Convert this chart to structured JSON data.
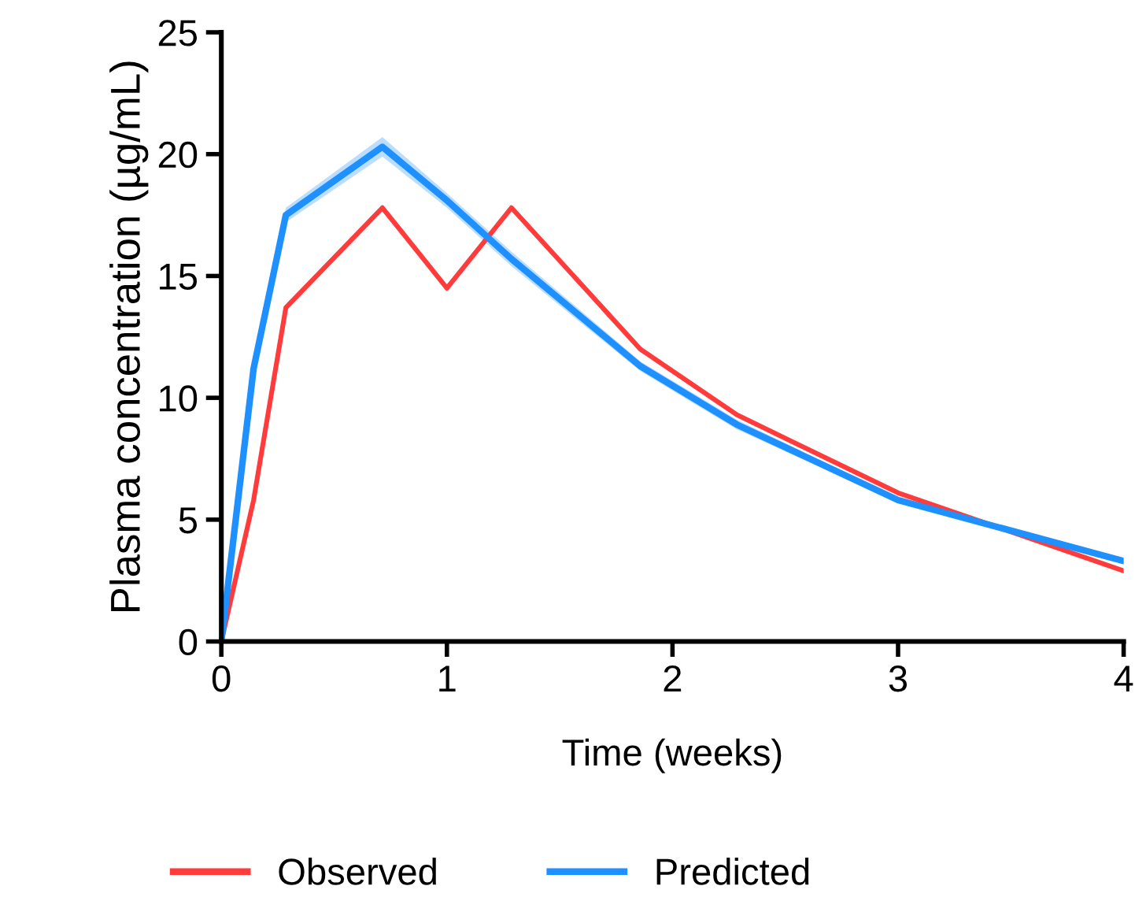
{
  "chart_data": {
    "type": "line",
    "xlabel": "Time (weeks)",
    "ylabel": "Plasma concentration (µg/mL)",
    "x": [
      0,
      0.143,
      0.286,
      0.714,
      1,
      1.286,
      1.857,
      2.286,
      3,
      4
    ],
    "series": [
      {
        "name": "Observed",
        "color": "#ff3b3b",
        "values": [
          0,
          5.8,
          13.7,
          17.8,
          14.5,
          17.8,
          12.0,
          9.3,
          6.1,
          2.9
        ]
      },
      {
        "name": "Predicted",
        "color": "#1e90ff",
        "values": [
          0,
          11.2,
          17.5,
          20.3,
          18.1,
          15.7,
          11.3,
          8.9,
          5.8,
          3.3
        ],
        "lower": [
          0,
          10.9,
          17.2,
          19.9,
          17.8,
          15.4,
          11.1,
          8.7,
          5.7,
          3.2
        ],
        "upper": [
          0,
          11.5,
          17.8,
          20.7,
          18.4,
          16.0,
          11.5,
          9.1,
          5.9,
          3.4
        ]
      }
    ],
    "xlim": [
      0,
      4
    ],
    "xticks": [
      0,
      1,
      2,
      3,
      4
    ],
    "ylim": [
      0,
      25
    ],
    "yticks": [
      0,
      5,
      10,
      15,
      20,
      25
    ],
    "grid": false,
    "legend": "bottom",
    "marker": "none",
    "line_style": "solid"
  }
}
